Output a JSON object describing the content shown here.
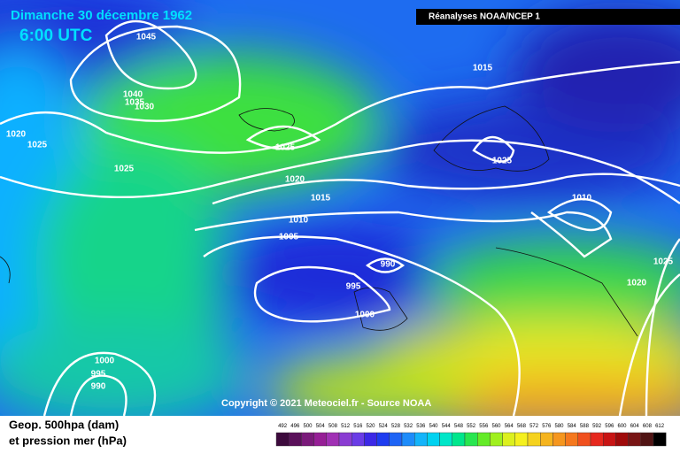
{
  "header": {
    "title": "Dimanche 30 décembre 1962",
    "time": "6:00 UTC",
    "source_box": "Réanalyses NOAA/NCEP 1"
  },
  "isobar_labels": [
    "1045",
    "1040",
    "1035",
    "1030",
    "1020",
    "1025",
    "1025",
    "1025",
    "1015",
    "1025",
    "1020",
    "1015",
    "1010",
    "1005",
    "1010",
    "990",
    "995",
    "1000",
    "1025",
    "1020",
    "1000",
    "995",
    "990"
  ],
  "copyright": "Copyright © 2021 Meteociel.fr - Source NOAA",
  "legend": {
    "line1": "Geop. 500hpa (dam)",
    "line2": "et pression mer (hPa)",
    "scale": [
      492,
      496,
      500,
      504,
      508,
      512,
      516,
      520,
      524,
      528,
      532,
      536,
      540,
      544,
      548,
      552,
      556,
      560,
      564,
      568,
      572,
      576,
      580,
      584,
      588,
      592,
      596,
      600,
      604,
      608,
      612
    ]
  }
}
